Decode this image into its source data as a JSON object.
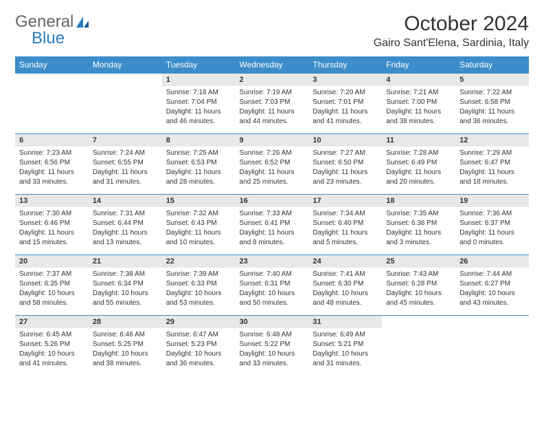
{
  "logo": {
    "general": "General",
    "blue": "Blue"
  },
  "title": "October 2024",
  "location": "Gairo Sant'Elena, Sardinia, Italy",
  "colors": {
    "header_bg": "#3c8dca",
    "header_fg": "#ffffff",
    "daynum_bg": "#e8e8e8",
    "border": "#3c8dca",
    "text": "#333333",
    "logo_gray": "#666666",
    "logo_blue": "#2b7bbf"
  },
  "weekdays": [
    "Sunday",
    "Monday",
    "Tuesday",
    "Wednesday",
    "Thursday",
    "Friday",
    "Saturday"
  ],
  "weeks": [
    {
      "nums": [
        "",
        "",
        "1",
        "2",
        "3",
        "4",
        "5"
      ],
      "cells": [
        null,
        null,
        {
          "sunrise": "Sunrise: 7:18 AM",
          "sunset": "Sunset: 7:04 PM",
          "day1": "Daylight: 11 hours",
          "day2": "and 46 minutes."
        },
        {
          "sunrise": "Sunrise: 7:19 AM",
          "sunset": "Sunset: 7:03 PM",
          "day1": "Daylight: 11 hours",
          "day2": "and 44 minutes."
        },
        {
          "sunrise": "Sunrise: 7:20 AM",
          "sunset": "Sunset: 7:01 PM",
          "day1": "Daylight: 11 hours",
          "day2": "and 41 minutes."
        },
        {
          "sunrise": "Sunrise: 7:21 AM",
          "sunset": "Sunset: 7:00 PM",
          "day1": "Daylight: 11 hours",
          "day2": "and 38 minutes."
        },
        {
          "sunrise": "Sunrise: 7:22 AM",
          "sunset": "Sunset: 6:58 PM",
          "day1": "Daylight: 11 hours",
          "day2": "and 36 minutes."
        }
      ]
    },
    {
      "nums": [
        "6",
        "7",
        "8",
        "9",
        "10",
        "11",
        "12"
      ],
      "cells": [
        {
          "sunrise": "Sunrise: 7:23 AM",
          "sunset": "Sunset: 6:56 PM",
          "day1": "Daylight: 11 hours",
          "day2": "and 33 minutes."
        },
        {
          "sunrise": "Sunrise: 7:24 AM",
          "sunset": "Sunset: 6:55 PM",
          "day1": "Daylight: 11 hours",
          "day2": "and 31 minutes."
        },
        {
          "sunrise": "Sunrise: 7:25 AM",
          "sunset": "Sunset: 6:53 PM",
          "day1": "Daylight: 11 hours",
          "day2": "and 28 minutes."
        },
        {
          "sunrise": "Sunrise: 7:26 AM",
          "sunset": "Sunset: 6:52 PM",
          "day1": "Daylight: 11 hours",
          "day2": "and 25 minutes."
        },
        {
          "sunrise": "Sunrise: 7:27 AM",
          "sunset": "Sunset: 6:50 PM",
          "day1": "Daylight: 11 hours",
          "day2": "and 23 minutes."
        },
        {
          "sunrise": "Sunrise: 7:28 AM",
          "sunset": "Sunset: 6:49 PM",
          "day1": "Daylight: 11 hours",
          "day2": "and 20 minutes."
        },
        {
          "sunrise": "Sunrise: 7:29 AM",
          "sunset": "Sunset: 6:47 PM",
          "day1": "Daylight: 11 hours",
          "day2": "and 18 minutes."
        }
      ]
    },
    {
      "nums": [
        "13",
        "14",
        "15",
        "16",
        "17",
        "18",
        "19"
      ],
      "cells": [
        {
          "sunrise": "Sunrise: 7:30 AM",
          "sunset": "Sunset: 6:46 PM",
          "day1": "Daylight: 11 hours",
          "day2": "and 15 minutes."
        },
        {
          "sunrise": "Sunrise: 7:31 AM",
          "sunset": "Sunset: 6:44 PM",
          "day1": "Daylight: 11 hours",
          "day2": "and 13 minutes."
        },
        {
          "sunrise": "Sunrise: 7:32 AM",
          "sunset": "Sunset: 6:43 PM",
          "day1": "Daylight: 11 hours",
          "day2": "and 10 minutes."
        },
        {
          "sunrise": "Sunrise: 7:33 AM",
          "sunset": "Sunset: 6:41 PM",
          "day1": "Daylight: 11 hours",
          "day2": "and 8 minutes."
        },
        {
          "sunrise": "Sunrise: 7:34 AM",
          "sunset": "Sunset: 6:40 PM",
          "day1": "Daylight: 11 hours",
          "day2": "and 5 minutes."
        },
        {
          "sunrise": "Sunrise: 7:35 AM",
          "sunset": "Sunset: 6:38 PM",
          "day1": "Daylight: 11 hours",
          "day2": "and 3 minutes."
        },
        {
          "sunrise": "Sunrise: 7:36 AM",
          "sunset": "Sunset: 6:37 PM",
          "day1": "Daylight: 11 hours",
          "day2": "and 0 minutes."
        }
      ]
    },
    {
      "nums": [
        "20",
        "21",
        "22",
        "23",
        "24",
        "25",
        "26"
      ],
      "cells": [
        {
          "sunrise": "Sunrise: 7:37 AM",
          "sunset": "Sunset: 6:35 PM",
          "day1": "Daylight: 10 hours",
          "day2": "and 58 minutes."
        },
        {
          "sunrise": "Sunrise: 7:38 AM",
          "sunset": "Sunset: 6:34 PM",
          "day1": "Daylight: 10 hours",
          "day2": "and 55 minutes."
        },
        {
          "sunrise": "Sunrise: 7:39 AM",
          "sunset": "Sunset: 6:33 PM",
          "day1": "Daylight: 10 hours",
          "day2": "and 53 minutes."
        },
        {
          "sunrise": "Sunrise: 7:40 AM",
          "sunset": "Sunset: 6:31 PM",
          "day1": "Daylight: 10 hours",
          "day2": "and 50 minutes."
        },
        {
          "sunrise": "Sunrise: 7:41 AM",
          "sunset": "Sunset: 6:30 PM",
          "day1": "Daylight: 10 hours",
          "day2": "and 48 minutes."
        },
        {
          "sunrise": "Sunrise: 7:43 AM",
          "sunset": "Sunset: 6:28 PM",
          "day1": "Daylight: 10 hours",
          "day2": "and 45 minutes."
        },
        {
          "sunrise": "Sunrise: 7:44 AM",
          "sunset": "Sunset: 6:27 PM",
          "day1": "Daylight: 10 hours",
          "day2": "and 43 minutes."
        }
      ]
    },
    {
      "nums": [
        "27",
        "28",
        "29",
        "30",
        "31",
        "",
        ""
      ],
      "cells": [
        {
          "sunrise": "Sunrise: 6:45 AM",
          "sunset": "Sunset: 5:26 PM",
          "day1": "Daylight: 10 hours",
          "day2": "and 41 minutes."
        },
        {
          "sunrise": "Sunrise: 6:46 AM",
          "sunset": "Sunset: 5:25 PM",
          "day1": "Daylight: 10 hours",
          "day2": "and 38 minutes."
        },
        {
          "sunrise": "Sunrise: 6:47 AM",
          "sunset": "Sunset: 5:23 PM",
          "day1": "Daylight: 10 hours",
          "day2": "and 36 minutes."
        },
        {
          "sunrise": "Sunrise: 6:48 AM",
          "sunset": "Sunset: 5:22 PM",
          "day1": "Daylight: 10 hours",
          "day2": "and 33 minutes."
        },
        {
          "sunrise": "Sunrise: 6:49 AM",
          "sunset": "Sunset: 5:21 PM",
          "day1": "Daylight: 10 hours",
          "day2": "and 31 minutes."
        },
        null,
        null
      ]
    }
  ]
}
